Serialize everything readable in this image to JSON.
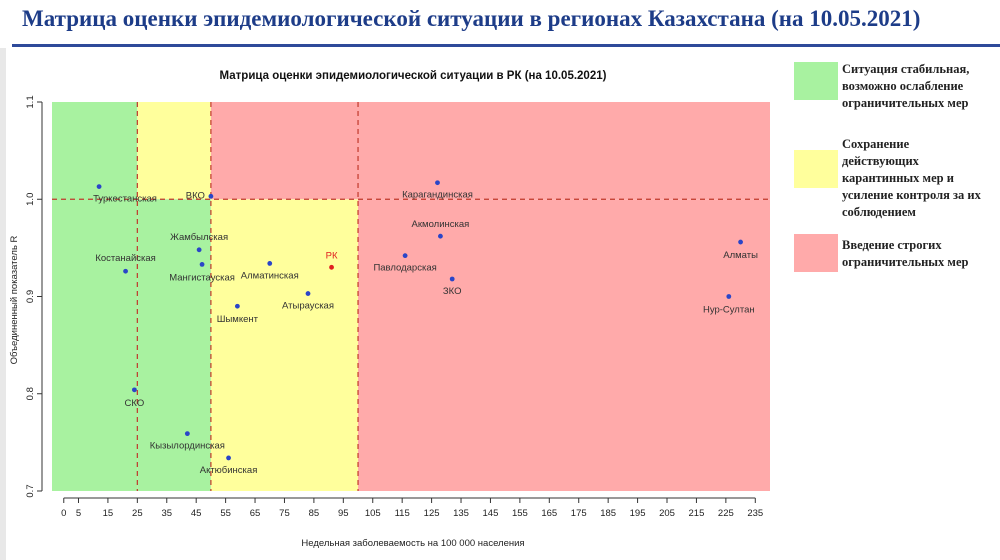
{
  "slide_title": "Матрица оценки эпидемиологической ситуации в регионах Казахстана (на 10.05.2021)",
  "legend": [
    {
      "text": "Ситуация стабильная,\nвозможно ослабление\nограничительных мер",
      "color": "#a8f2a0"
    },
    {
      "text": "Сохранение\nдействующих\nкарантинных мер и\nусиление контроля за их\nсоблюдением",
      "color": "#ffff9c"
    },
    {
      "text": "Введение строгих\nограничительных мер",
      "color": "#ffaaaa"
    }
  ],
  "chart_data": {
    "type": "scatter",
    "title": "Матрица оценки эпидемиологической ситуации в РК (на 10.05.2021)",
    "xlabel": "Недельная заболеваемость на 100 000 населения",
    "ylabel": "Объединенный показатель R",
    "xlim": [
      -4,
      240
    ],
    "ylim": [
      0.7,
      1.1
    ],
    "x_ticks": [
      0,
      5,
      15,
      25,
      35,
      45,
      55,
      65,
      75,
      85,
      95,
      105,
      115,
      125,
      135,
      145,
      155,
      165,
      175,
      185,
      195,
      205,
      215,
      225,
      235
    ],
    "y_ticks": [
      0.7,
      0.8,
      0.9,
      1.0,
      1.1
    ],
    "y_tick_labels": [
      "0.7",
      "0.8",
      "0.9",
      "1.0",
      "1.1"
    ],
    "zones": [
      {
        "x0": -4,
        "x1": 25,
        "y0": 0.7,
        "y1": 1.1,
        "color": "#a8f2a0"
      },
      {
        "x0": 25,
        "x1": 50,
        "y0": 1.0,
        "y1": 1.1,
        "color": "#ffff9c"
      },
      {
        "x0": 25,
        "x1": 50,
        "y0": 0.7,
        "y1": 1.0,
        "color": "#a8f2a0"
      },
      {
        "x0": 50,
        "x1": 100,
        "y0": 0.7,
        "y1": 1.0,
        "color": "#ffff9c"
      },
      {
        "x0": 50,
        "x1": 240,
        "y0": 1.0,
        "y1": 1.1,
        "color": "#ffaaaa"
      },
      {
        "x0": 100,
        "x1": 240,
        "y0": 0.7,
        "y1": 1.0,
        "color": "#ffaaaa"
      }
    ],
    "thresholds": {
      "x": [
        25,
        50,
        100
      ],
      "y": [
        1.0
      ]
    },
    "points": [
      {
        "label": "Туркестанская",
        "x": 12,
        "y": 1.013,
        "color": "#2a45c8",
        "label_color": "#333333",
        "anchor": "start",
        "dx": -6,
        "dy": 15
      },
      {
        "label": "ВКО",
        "x": 50,
        "y": 1.003,
        "color": "#2a45c8",
        "label_color": "#333333",
        "anchor": "end",
        "dx": -6,
        "dy": 2
      },
      {
        "label": "Жамбылская",
        "x": 46,
        "y": 0.948,
        "color": "#2a45c8",
        "label_color": "#333333",
        "anchor": "middle",
        "dx": 0,
        "dy": -10
      },
      {
        "label": "Костанайская",
        "x": 21,
        "y": 0.926,
        "color": "#2a45c8",
        "label_color": "#333333",
        "anchor": "middle",
        "dx": 0,
        "dy": -10
      },
      {
        "label": "Мангистауская",
        "x": 47,
        "y": 0.933,
        "color": "#2a45c8",
        "label_color": "#333333",
        "anchor": "middle",
        "dx": 0,
        "dy": 16
      },
      {
        "label": "Алматинская",
        "x": 70,
        "y": 0.934,
        "color": "#2a45c8",
        "label_color": "#333333",
        "anchor": "middle",
        "dx": 0,
        "dy": 15
      },
      {
        "label": "РК",
        "x": 91,
        "y": 0.93,
        "color": "#e02020",
        "label_color": "#e02020",
        "anchor": "middle",
        "dx": 0,
        "dy": -9
      },
      {
        "label": "Атырауская",
        "x": 83,
        "y": 0.903,
        "color": "#2a45c8",
        "label_color": "#333333",
        "anchor": "middle",
        "dx": 0,
        "dy": 15
      },
      {
        "label": "Шымкент",
        "x": 59,
        "y": 0.89,
        "color": "#2a45c8",
        "label_color": "#333333",
        "anchor": "middle",
        "dx": 0,
        "dy": 16
      },
      {
        "label": "Карагандинская",
        "x": 127,
        "y": 1.017,
        "color": "#2a45c8",
        "label_color": "#333333",
        "anchor": "middle",
        "dx": 0,
        "dy": 15
      },
      {
        "label": "Акмолинская",
        "x": 128,
        "y": 0.962,
        "color": "#2a45c8",
        "label_color": "#333333",
        "anchor": "middle",
        "dx": 0,
        "dy": -9
      },
      {
        "label": "Павлодарская",
        "x": 116,
        "y": 0.942,
        "color": "#2a45c8",
        "label_color": "#333333",
        "anchor": "middle",
        "dx": 0,
        "dy": 15
      },
      {
        "label": "ЗКО",
        "x": 132,
        "y": 0.918,
        "color": "#2a45c8",
        "label_color": "#333333",
        "anchor": "middle",
        "dx": 0,
        "dy": 15
      },
      {
        "label": "Алматы",
        "x": 230,
        "y": 0.956,
        "color": "#2a45c8",
        "label_color": "#333333",
        "anchor": "middle",
        "dx": 0,
        "dy": 16
      },
      {
        "label": "Нур-Султан",
        "x": 226,
        "y": 0.9,
        "color": "#2a45c8",
        "label_color": "#333333",
        "anchor": "middle",
        "dx": 0,
        "dy": 16
      },
      {
        "label": "СКО",
        "x": 24,
        "y": 0.804,
        "color": "#2a45c8",
        "label_color": "#333333",
        "anchor": "middle",
        "dx": 0,
        "dy": 16
      },
      {
        "label": "Кызылординская",
        "x": 42,
        "y": 0.759,
        "color": "#2a45c8",
        "label_color": "#333333",
        "anchor": "middle",
        "dx": 0,
        "dy": 15
      },
      {
        "label": "Актюбинская",
        "x": 56,
        "y": 0.734,
        "color": "#2a45c8",
        "label_color": "#333333",
        "anchor": "middle",
        "dx": 0,
        "dy": 15
      }
    ]
  }
}
